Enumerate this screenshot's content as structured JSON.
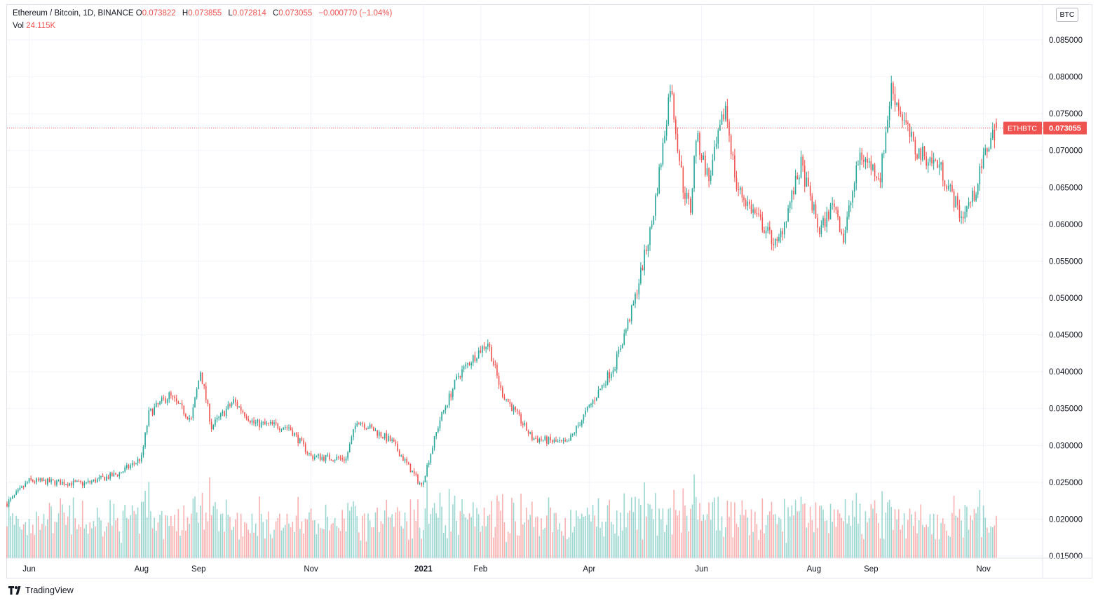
{
  "legend": {
    "symbol_title": "Ethereum / Bitcoin, 1D, BINANCE",
    "open_label": "O",
    "open": "0.073822",
    "high_label": "H",
    "high": "0.073855",
    "low_label": "L",
    "low": "0.072814",
    "close_label": "C",
    "close": "0.073055",
    "change": "−0.000770 (−1.04%)",
    "vol_label": "Vol",
    "vol": "24.115K"
  },
  "currency_button": "BTC",
  "price_tag": {
    "symbol": "ETHBTC",
    "value": "0.073055"
  },
  "watermark": "TradingView",
  "colors": {
    "up": "#26a69a",
    "down": "#ef5350",
    "grid": "#f0f3fa",
    "text": "#131722",
    "tag_bg": "#ef5350"
  },
  "chart_data": {
    "type": "candlestick",
    "symbol": "ETHBTC",
    "interval": "1D",
    "exchange": "BINANCE",
    "x_range": [
      "2020-05-20",
      "2021-11-08"
    ],
    "ylim": [
      0.015,
      0.0875
    ],
    "y_ticks": [
      "0.015000",
      "0.020000",
      "0.025000",
      "0.030000",
      "0.035000",
      "0.040000",
      "0.045000",
      "0.050000",
      "0.055000",
      "0.060000",
      "0.065000",
      "0.070000",
      "0.075000",
      "0.080000",
      "0.085000"
    ],
    "x_ticks": [
      {
        "label": "Jun",
        "date": "2020-06-01"
      },
      {
        "label": "Aug",
        "date": "2020-08-01"
      },
      {
        "label": "Sep",
        "date": "2020-09-01"
      },
      {
        "label": "Nov",
        "date": "2020-11-01"
      },
      {
        "label": "2021",
        "date": "2021-01-01"
      },
      {
        "label": "Feb",
        "date": "2021-02-01"
      },
      {
        "label": "Apr",
        "date": "2021-04-01"
      },
      {
        "label": "Jun",
        "date": "2021-06-01"
      },
      {
        "label": "Aug",
        "date": "2021-08-01"
      },
      {
        "label": "Sep",
        "date": "2021-09-01"
      },
      {
        "label": "Nov",
        "date": "2021-11-01"
      }
    ],
    "last_price": 0.073055,
    "close_series": [
      {
        "date": "2020-05-20",
        "close": 0.0221
      },
      {
        "date": "2020-06-01",
        "close": 0.0252
      },
      {
        "date": "2020-07-01",
        "close": 0.0248
      },
      {
        "date": "2020-07-20",
        "close": 0.0262
      },
      {
        "date": "2020-08-01",
        "close": 0.0283
      },
      {
        "date": "2020-08-05",
        "close": 0.0343
      },
      {
        "date": "2020-08-16",
        "close": 0.0368
      },
      {
        "date": "2020-08-28",
        "close": 0.0335
      },
      {
        "date": "2020-09-02",
        "close": 0.0401
      },
      {
        "date": "2020-09-08",
        "close": 0.0325
      },
      {
        "date": "2020-09-20",
        "close": 0.036
      },
      {
        "date": "2020-10-01",
        "close": 0.033
      },
      {
        "date": "2020-10-20",
        "close": 0.0325
      },
      {
        "date": "2020-11-01",
        "close": 0.0285
      },
      {
        "date": "2020-11-20",
        "close": 0.0282
      },
      {
        "date": "2020-11-26",
        "close": 0.0335
      },
      {
        "date": "2020-12-15",
        "close": 0.0305
      },
      {
        "date": "2020-12-31",
        "close": 0.0245
      },
      {
        "date": "2021-01-10",
        "close": 0.0335
      },
      {
        "date": "2021-01-20",
        "close": 0.0395
      },
      {
        "date": "2021-01-30",
        "close": 0.0425
      },
      {
        "date": "2021-02-05",
        "close": 0.044
      },
      {
        "date": "2021-02-12",
        "close": 0.0375
      },
      {
        "date": "2021-03-01",
        "close": 0.031
      },
      {
        "date": "2021-03-20",
        "close": 0.0302
      },
      {
        "date": "2021-04-01",
        "close": 0.0352
      },
      {
        "date": "2021-04-15",
        "close": 0.041
      },
      {
        "date": "2021-04-25",
        "close": 0.049
      },
      {
        "date": "2021-05-05",
        "close": 0.06
      },
      {
        "date": "2021-05-11",
        "close": 0.0705
      },
      {
        "date": "2021-05-15",
        "close": 0.079
      },
      {
        "date": "2021-05-22",
        "close": 0.065
      },
      {
        "date": "2021-05-26",
        "close": 0.062
      },
      {
        "date": "2021-05-29",
        "close": 0.072
      },
      {
        "date": "2021-06-05",
        "close": 0.066
      },
      {
        "date": "2021-06-14",
        "close": 0.076
      },
      {
        "date": "2021-06-20",
        "close": 0.065
      },
      {
        "date": "2021-07-12",
        "close": 0.057
      },
      {
        "date": "2021-07-25",
        "close": 0.068
      },
      {
        "date": "2021-08-04",
        "close": 0.059
      },
      {
        "date": "2021-08-12",
        "close": 0.063
      },
      {
        "date": "2021-08-17",
        "close": 0.058
      },
      {
        "date": "2021-08-26",
        "close": 0.0695
      },
      {
        "date": "2021-09-06",
        "close": 0.0665
      },
      {
        "date": "2021-09-12",
        "close": 0.0785
      },
      {
        "date": "2021-09-25",
        "close": 0.07
      },
      {
        "date": "2021-10-08",
        "close": 0.068
      },
      {
        "date": "2021-10-20",
        "close": 0.061
      },
      {
        "date": "2021-10-27",
        "close": 0.064
      },
      {
        "date": "2021-11-03",
        "close": 0.0705
      },
      {
        "date": "2021-11-08",
        "close": 0.0731
      }
    ]
  }
}
